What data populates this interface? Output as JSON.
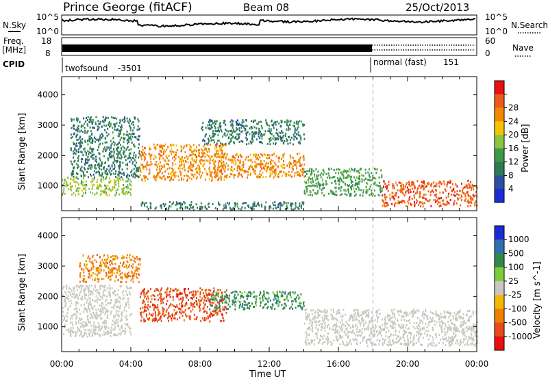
{
  "header": {
    "station": "Prince George (fitACF)",
    "beam": "Beam 08",
    "date": "25/Oct/2013"
  },
  "status_panel": {
    "nsky_label": "N.Sky",
    "nsearch_label": "N.Search",
    "noise_ticks_left": [
      "10^5",
      "10^0"
    ],
    "noise_ticks_right": [
      "10^5",
      "10^0"
    ],
    "freq_label_line1": "Freq.",
    "freq_label_line2": "[MHz]",
    "freq_ticks": [
      "18",
      "8"
    ],
    "nave_label": "Nave",
    "nave_ticks": [
      "60",
      "0"
    ],
    "cpid_label": "CPID",
    "cpid_segments": [
      {
        "name": "twofsound",
        "id": "-3501",
        "start_hour": 0,
        "end_hour": 18
      },
      {
        "name": "normal (fast)",
        "id": "151",
        "start_hour": 18,
        "end_hour": 24
      }
    ]
  },
  "chart_data": [
    {
      "type": "heatmap",
      "title": "",
      "xlabel": "Time UT",
      "ylabel": "Slant Range [km]",
      "x_ticks": [
        "00:00",
        "04:00",
        "08:00",
        "12:00",
        "16:00",
        "20:00",
        "00:00"
      ],
      "x_range_hours": [
        0,
        24
      ],
      "ylim": [
        180,
        4600
      ],
      "y_ticks": [
        1000,
        2000,
        3000,
        4000
      ],
      "colorbar_label": "Power [dB]",
      "colorbar_ticks": [
        4,
        8,
        12,
        16,
        20,
        24,
        28
      ],
      "colorbar_colors": [
        "#1a2bd6",
        "#2c4fa0",
        "#2f7a55",
        "#3d9a48",
        "#8cc63f",
        "#f5c400",
        "#f28a00",
        "#ee5a1c",
        "#e61010"
      ],
      "echo_regions": [
        {
          "t_start": 0.0,
          "t_end": 4.0,
          "range_min": 700,
          "range_max": 1300,
          "level": 16
        },
        {
          "t_start": 0.5,
          "t_end": 4.5,
          "range_min": 1300,
          "range_max": 3300,
          "level": 6
        },
        {
          "t_start": 4.5,
          "t_end": 9.5,
          "range_min": 1200,
          "range_max": 2400,
          "level": 24
        },
        {
          "t_start": 8.5,
          "t_end": 14.0,
          "range_min": 1300,
          "range_max": 2100,
          "level": 22
        },
        {
          "t_start": 8.0,
          "t_end": 14.0,
          "range_min": 2400,
          "range_max": 3200,
          "level": 6
        },
        {
          "t_start": 14.0,
          "t_end": 18.5,
          "range_min": 700,
          "range_max": 1600,
          "level": 10
        },
        {
          "t_start": 18.5,
          "t_end": 24.0,
          "range_min": 350,
          "range_max": 1200,
          "level": 28
        },
        {
          "t_start": 4.5,
          "t_end": 14.0,
          "range_min": 250,
          "range_max": 500,
          "level": 8
        }
      ]
    },
    {
      "type": "heatmap",
      "title": "",
      "xlabel": "Time UT",
      "ylabel": "Slant Range [km]",
      "x_ticks": [
        "00:00",
        "04:00",
        "08:00",
        "12:00",
        "16:00",
        "20:00",
        "00:00"
      ],
      "x_range_hours": [
        0,
        24
      ],
      "ylim": [
        180,
        4600
      ],
      "y_ticks": [
        1000,
        2000,
        3000,
        4000
      ],
      "colorbar_label": "Velocity [m s^-1]",
      "colorbar_ticks": [
        1000,
        500,
        100,
        25,
        -25,
        -100,
        -500,
        -1000
      ],
      "colorbar_colors": [
        "#1a2bd6",
        "#2f6fb0",
        "#2f8a4a",
        "#7ccd3a",
        "#c8c8c0",
        "#f5b800",
        "#f08000",
        "#e84a1c",
        "#e61010"
      ],
      "ground_scatter_color": "#c8c8c0",
      "echo_regions": [
        {
          "t_start": 0.0,
          "t_end": 4.0,
          "range_min": 700,
          "range_max": 2400,
          "level": 0,
          "ground_scatter": true
        },
        {
          "t_start": 4.5,
          "t_end": 9.5,
          "range_min": 1200,
          "range_max": 2300,
          "level": -500
        },
        {
          "t_start": 8.5,
          "t_end": 14.0,
          "range_min": 1600,
          "range_max": 2200,
          "level": 100
        },
        {
          "t_start": 14.0,
          "t_end": 24.0,
          "range_min": 400,
          "range_max": 1600,
          "level": 0,
          "ground_scatter": true
        },
        {
          "t_start": 1.0,
          "t_end": 4.5,
          "range_min": 2500,
          "range_max": 3400,
          "level": -100
        }
      ]
    }
  ]
}
